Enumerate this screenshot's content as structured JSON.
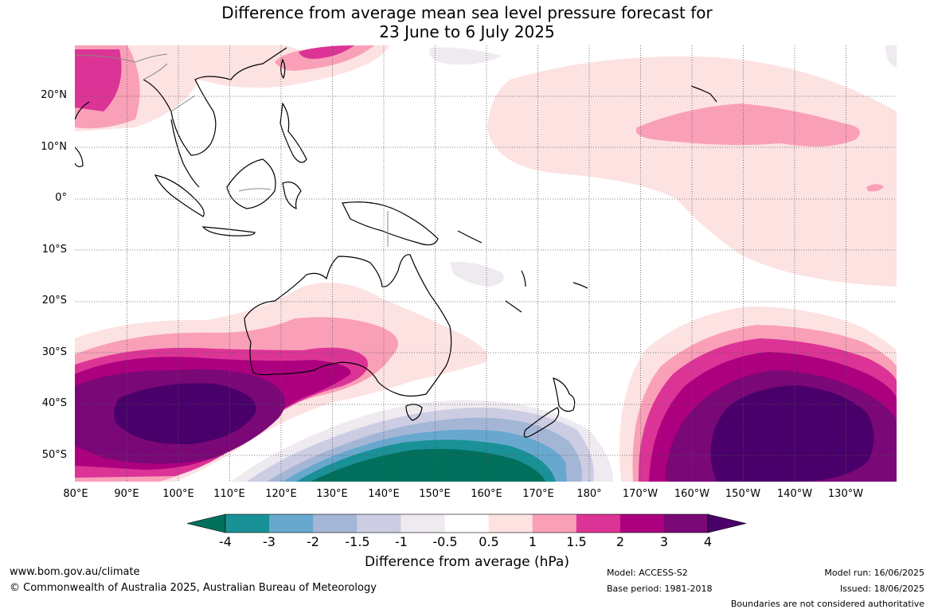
{
  "title_line1": "Difference from average mean sea level pressure forecast for",
  "title_line2": "23 June to 6 July 2025",
  "latitude_labels": [
    "20°N",
    "10°N",
    "0°",
    "10°S",
    "20°S",
    "30°S",
    "40°S",
    "50°S"
  ],
  "longitude_labels": [
    "80°E",
    "90°E",
    "100°E",
    "110°E",
    "120°E",
    "130°E",
    "140°E",
    "150°E",
    "160°E",
    "170°E",
    "180°",
    "170°W",
    "160°W",
    "150°W",
    "140°W",
    "130°W"
  ],
  "colorbar": {
    "title": "Difference from average (hPa)",
    "tick_labels": [
      "-4",
      "-3",
      "-2",
      "-1.5",
      "-1",
      "-0.5",
      "0.5",
      "1",
      "1.5",
      "2",
      "3",
      "4"
    ],
    "colors": [
      "#00705c",
      "#1a9196",
      "#68a8cf",
      "#a4b6d6",
      "#cccde3",
      "#eeeaf0",
      "#ffffff",
      "#fde2e2",
      "#f9a0b8",
      "#dc3496",
      "#ac007e",
      "#7a0877",
      "#4a006a"
    ]
  },
  "footer": {
    "website": "www.bom.gov.au/climate",
    "copyright": "© Commonwealth of Australia 2025, Australian Bureau of Meteorology",
    "model": "Model: ACCESS-S2",
    "base_period": "Base period: 1981-2018",
    "model_run": "Model run: 16/06/2025",
    "issued": "Issued: 18/06/2025",
    "disclaimer": "Boundaries are not considered authoritative"
  }
}
